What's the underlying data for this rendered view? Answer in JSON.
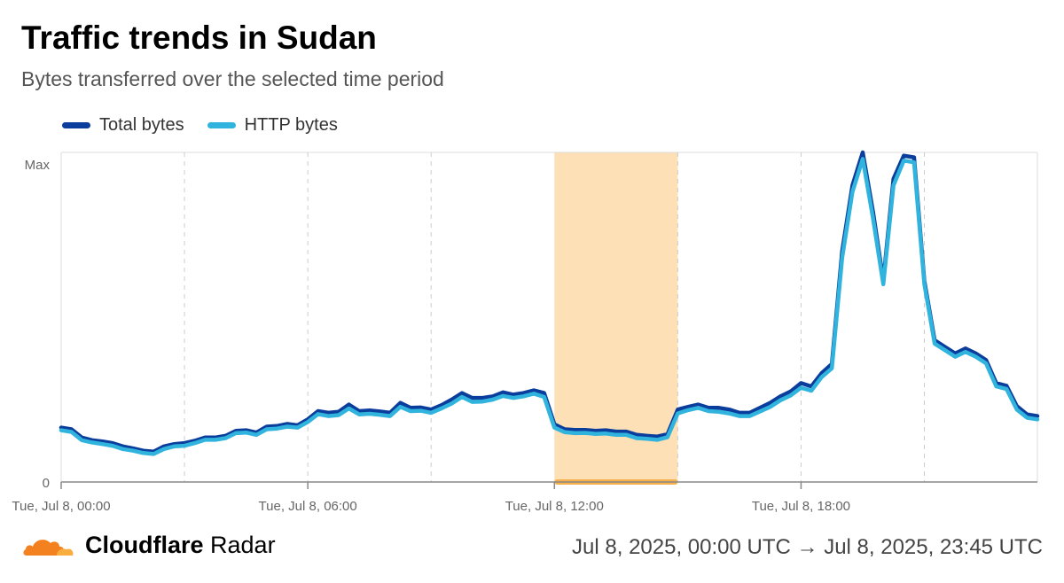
{
  "header": {
    "title": "Traffic trends in Sudan",
    "subtitle": "Bytes transferred over the selected time period"
  },
  "footer": {
    "brand_bold": "Cloudflare",
    "brand_light": "Radar",
    "date_range": "Jul 8, 2025, 00:00 UTC → Jul 8, 2025, 23:45 UTC"
  },
  "colors": {
    "total_bytes": "#0a3d9c",
    "http_bytes": "#30b4dd",
    "highlight": "#fde0b6",
    "highlight_bar": "#f7b14c",
    "cloud_orange": "#f48120",
    "cloud_light": "#faad3f"
  },
  "chart_data": {
    "type": "line",
    "x_unit": "hours since Jul 8, 00:00 UTC",
    "xlim": [
      0,
      23.75
    ],
    "ylim": [
      0,
      1
    ],
    "y_tick_labels": [
      "0",
      "Max"
    ],
    "x_tick_labels": [
      {
        "x": 0,
        "label": "Tue, Jul 8, 00:00"
      },
      {
        "x": 6,
        "label": "Tue, Jul 8, 06:00"
      },
      {
        "x": 12,
        "label": "Tue, Jul 8, 12:00"
      },
      {
        "x": 18,
        "label": "Tue, Jul 8, 18:00"
      }
    ],
    "grid_x": [
      3,
      6,
      9,
      15,
      18,
      21
    ],
    "highlight_range": [
      12,
      15
    ],
    "legend_position": "top-left",
    "series": [
      {
        "name": "Total bytes",
        "points": [
          [
            0,
            0.165
          ],
          [
            0.25,
            0.16
          ],
          [
            0.5,
            0.135
          ],
          [
            0.75,
            0.127
          ],
          [
            1,
            0.123
          ],
          [
            1.25,
            0.118
          ],
          [
            1.5,
            0.108
          ],
          [
            1.75,
            0.102
          ],
          [
            2,
            0.095
          ],
          [
            2.25,
            0.092
          ],
          [
            2.5,
            0.108
          ],
          [
            2.75,
            0.115
          ],
          [
            3,
            0.118
          ],
          [
            3.25,
            0.125
          ],
          [
            3.5,
            0.135
          ],
          [
            3.75,
            0.135
          ],
          [
            4,
            0.14
          ],
          [
            4.25,
            0.155
          ],
          [
            4.5,
            0.157
          ],
          [
            4.75,
            0.15
          ],
          [
            5,
            0.168
          ],
          [
            5.25,
            0.17
          ],
          [
            5.5,
            0.176
          ],
          [
            5.75,
            0.172
          ],
          [
            6,
            0.19
          ],
          [
            6.25,
            0.215
          ],
          [
            6.5,
            0.21
          ],
          [
            6.75,
            0.213
          ],
          [
            7,
            0.235
          ],
          [
            7.25,
            0.215
          ],
          [
            7.5,
            0.217
          ],
          [
            7.75,
            0.214
          ],
          [
            8,
            0.21
          ],
          [
            8.25,
            0.24
          ],
          [
            8.5,
            0.225
          ],
          [
            8.75,
            0.226
          ],
          [
            9,
            0.22
          ],
          [
            9.25,
            0.233
          ],
          [
            9.5,
            0.25
          ],
          [
            9.75,
            0.27
          ],
          [
            10,
            0.255
          ],
          [
            10.25,
            0.255
          ],
          [
            10.5,
            0.26
          ],
          [
            10.75,
            0.272
          ],
          [
            11,
            0.265
          ],
          [
            11.25,
            0.27
          ],
          [
            11.5,
            0.278
          ],
          [
            11.75,
            0.27
          ],
          [
            12,
            0.175
          ],
          [
            12.25,
            0.16
          ],
          [
            12.5,
            0.158
          ],
          [
            12.75,
            0.158
          ],
          [
            13,
            0.155
          ],
          [
            13.25,
            0.157
          ],
          [
            13.5,
            0.153
          ],
          [
            13.75,
            0.153
          ],
          [
            14,
            0.143
          ],
          [
            14.25,
            0.14
          ],
          [
            14.5,
            0.138
          ],
          [
            14.75,
            0.145
          ],
          [
            15,
            0.22
          ],
          [
            15.25,
            0.228
          ],
          [
            15.5,
            0.235
          ],
          [
            15.75,
            0.225
          ],
          [
            16,
            0.225
          ],
          [
            16.25,
            0.22
          ],
          [
            16.5,
            0.21
          ],
          [
            16.75,
            0.21
          ],
          [
            17,
            0.225
          ],
          [
            17.25,
            0.24
          ],
          [
            17.5,
            0.26
          ],
          [
            17.75,
            0.275
          ],
          [
            18,
            0.3
          ],
          [
            18.25,
            0.29
          ],
          [
            18.5,
            0.33
          ],
          [
            18.75,
            0.358
          ],
          [
            19,
            0.7
          ],
          [
            19.25,
            0.9
          ],
          [
            19.5,
            1.0
          ],
          [
            19.75,
            0.82
          ],
          [
            20,
            0.61
          ],
          [
            20.25,
            0.92
          ],
          [
            20.5,
            0.99
          ],
          [
            20.75,
            0.985
          ],
          [
            21,
            0.61
          ],
          [
            21.25,
            0.43
          ],
          [
            21.5,
            0.41
          ],
          [
            21.75,
            0.39
          ],
          [
            22,
            0.405
          ],
          [
            22.25,
            0.39
          ],
          [
            22.5,
            0.37
          ],
          [
            22.75,
            0.3
          ],
          [
            23,
            0.292
          ],
          [
            23.25,
            0.23
          ],
          [
            23.5,
            0.205
          ],
          [
            23.75,
            0.2
          ]
        ]
      },
      {
        "name": "HTTP bytes",
        "points": [
          [
            0,
            0.157
          ],
          [
            0.25,
            0.152
          ],
          [
            0.5,
            0.127
          ],
          [
            0.75,
            0.12
          ],
          [
            1,
            0.115
          ],
          [
            1.25,
            0.11
          ],
          [
            1.5,
            0.1
          ],
          [
            1.75,
            0.095
          ],
          [
            2,
            0.088
          ],
          [
            2.25,
            0.085
          ],
          [
            2.5,
            0.1
          ],
          [
            2.75,
            0.108
          ],
          [
            3,
            0.11
          ],
          [
            3.25,
            0.118
          ],
          [
            3.5,
            0.128
          ],
          [
            3.75,
            0.128
          ],
          [
            4,
            0.133
          ],
          [
            4.25,
            0.148
          ],
          [
            4.5,
            0.15
          ],
          [
            4.75,
            0.143
          ],
          [
            5,
            0.16
          ],
          [
            5.25,
            0.162
          ],
          [
            5.5,
            0.168
          ],
          [
            5.75,
            0.165
          ],
          [
            6,
            0.182
          ],
          [
            6.25,
            0.206
          ],
          [
            6.5,
            0.2
          ],
          [
            6.75,
            0.203
          ],
          [
            7,
            0.223
          ],
          [
            7.25,
            0.205
          ],
          [
            7.5,
            0.207
          ],
          [
            7.75,
            0.204
          ],
          [
            8,
            0.2
          ],
          [
            8.25,
            0.228
          ],
          [
            8.5,
            0.215
          ],
          [
            8.75,
            0.216
          ],
          [
            9,
            0.21
          ],
          [
            9.25,
            0.223
          ],
          [
            9.5,
            0.238
          ],
          [
            9.75,
            0.258
          ],
          [
            10,
            0.243
          ],
          [
            10.25,
            0.244
          ],
          [
            10.5,
            0.25
          ],
          [
            10.75,
            0.261
          ],
          [
            11,
            0.255
          ],
          [
            11.25,
            0.26
          ],
          [
            11.5,
            0.268
          ],
          [
            11.75,
            0.258
          ],
          [
            12,
            0.165
          ],
          [
            12.25,
            0.151
          ],
          [
            12.5,
            0.148
          ],
          [
            12.75,
            0.149
          ],
          [
            13,
            0.146
          ],
          [
            13.25,
            0.147
          ],
          [
            13.5,
            0.143
          ],
          [
            13.75,
            0.143
          ],
          [
            14,
            0.133
          ],
          [
            14.25,
            0.131
          ],
          [
            14.5,
            0.128
          ],
          [
            14.75,
            0.136
          ],
          [
            15,
            0.208
          ],
          [
            15.25,
            0.218
          ],
          [
            15.5,
            0.225
          ],
          [
            15.75,
            0.215
          ],
          [
            16,
            0.213
          ],
          [
            16.25,
            0.208
          ],
          [
            16.5,
            0.2
          ],
          [
            16.75,
            0.2
          ],
          [
            17,
            0.214
          ],
          [
            17.25,
            0.228
          ],
          [
            17.5,
            0.248
          ],
          [
            17.75,
            0.263
          ],
          [
            18,
            0.286
          ],
          [
            18.25,
            0.277
          ],
          [
            18.5,
            0.318
          ],
          [
            18.75,
            0.345
          ],
          [
            19,
            0.68
          ],
          [
            19.25,
            0.88
          ],
          [
            19.5,
            0.98
          ],
          [
            19.75,
            0.8
          ],
          [
            20,
            0.6
          ],
          [
            20.25,
            0.9
          ],
          [
            20.5,
            0.975
          ],
          [
            20.75,
            0.97
          ],
          [
            21,
            0.6
          ],
          [
            21.25,
            0.42
          ],
          [
            21.5,
            0.4
          ],
          [
            21.75,
            0.38
          ],
          [
            22,
            0.395
          ],
          [
            22.25,
            0.38
          ],
          [
            22.5,
            0.36
          ],
          [
            22.75,
            0.29
          ],
          [
            23,
            0.282
          ],
          [
            23.25,
            0.22
          ],
          [
            23.5,
            0.195
          ],
          [
            23.75,
            0.19
          ]
        ]
      }
    ]
  }
}
